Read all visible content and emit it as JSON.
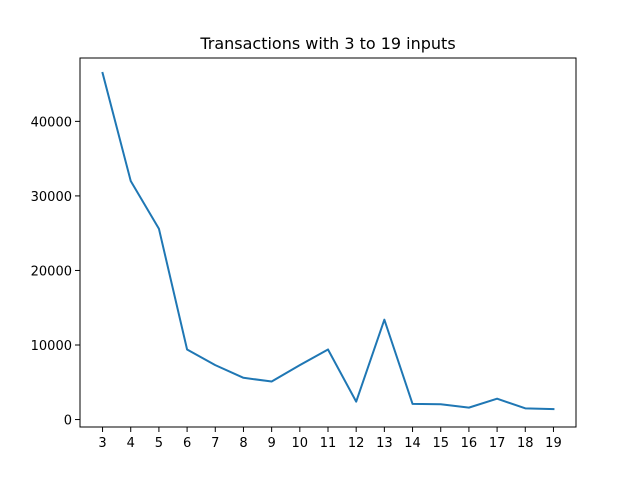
{
  "chart_data": {
    "type": "line",
    "title": "Transactions with 3 to 19 inputs",
    "xlabel": "",
    "ylabel": "",
    "x": [
      3,
      4,
      5,
      6,
      7,
      8,
      9,
      10,
      11,
      12,
      13,
      14,
      15,
      16,
      17,
      18,
      19
    ],
    "series": [
      {
        "values": [
          46500,
          32000,
          25600,
          9400,
          7300,
          5600,
          5100,
          7300,
          9400,
          2400,
          13400,
          2100,
          2050,
          1600,
          2800,
          1500,
          1400
        ]
      }
    ],
    "xlim": [
      2.2,
      19.8
    ],
    "ylim": [
      -1000,
      48500
    ],
    "yticks": [
      0,
      10000,
      20000,
      30000,
      40000
    ],
    "ytick_labels": [
      "0",
      "10000",
      "20000",
      "30000",
      "40000"
    ],
    "xtick_labels": [
      "3",
      "4",
      "5",
      "6",
      "7",
      "8",
      "9",
      "10",
      "11",
      "12",
      "13",
      "14",
      "15",
      "16",
      "17",
      "18",
      "19"
    ],
    "grid": false,
    "line_color": "#1f77b4"
  }
}
